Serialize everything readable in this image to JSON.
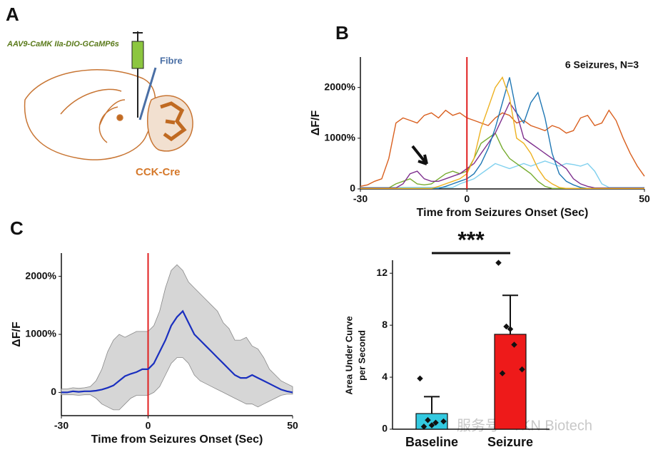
{
  "panels": {
    "a": "A",
    "b": "B",
    "c": "C"
  },
  "diagram": {
    "virus": "AAV9-CaMK IIa-DIO-GCaMP6s",
    "fibre": "Fibre",
    "mouse": "CCK-Cre"
  },
  "watermark": "服务号 · TKN Biotech",
  "chart_data": [
    {
      "type": "line",
      "ylabel": "ΔF/F",
      "xlabel": "Time from Seizures Onset (Sec)",
      "annotation": "6 Seizures, N=3",
      "xlim": [
        -30,
        50
      ],
      "xticks": [
        -30,
        0,
        50
      ],
      "ylim": [
        0,
        2600
      ],
      "yticks": [
        {
          "value": 0,
          "label": "0"
        },
        {
          "value": 1000,
          "label": "1000%"
        },
        {
          "value": 2000,
          "label": "2000%"
        }
      ],
      "onset": {
        "x": 0,
        "color": "#e02020"
      },
      "x": [
        -30,
        -28,
        -26,
        -24,
        -22,
        -20,
        -18,
        -16,
        -14,
        -12,
        -10,
        -8,
        -6,
        -4,
        -2,
        0,
        2,
        4,
        6,
        8,
        10,
        12,
        14,
        16,
        18,
        20,
        22,
        24,
        26,
        28,
        30,
        32,
        34,
        36,
        38,
        40,
        42,
        44,
        46,
        48,
        50
      ],
      "series": [
        {
          "color": "#d95f1e",
          "values": [
            50,
            80,
            150,
            200,
            600,
            1300,
            1400,
            1350,
            1300,
            1450,
            1500,
            1400,
            1550,
            1450,
            1500,
            1400,
            1350,
            1300,
            1250,
            1400,
            1500,
            1450,
            1300,
            1350,
            1250,
            1200,
            1150,
            1250,
            1200,
            1100,
            1150,
            1400,
            1450,
            1250,
            1300,
            1550,
            1350,
            1000,
            700,
            450,
            250
          ]
        },
        {
          "color": "#7fd0ee",
          "values": [
            30,
            30,
            30,
            30,
            30,
            30,
            30,
            30,
            30,
            30,
            30,
            30,
            30,
            30,
            100,
            150,
            200,
            300,
            400,
            500,
            450,
            400,
            450,
            500,
            450,
            500,
            550,
            500,
            450,
            500,
            480,
            450,
            500,
            350,
            100,
            30,
            30,
            30,
            30,
            30,
            30
          ]
        },
        {
          "color": "#77ac30",
          "values": [
            20,
            20,
            20,
            20,
            20,
            100,
            150,
            200,
            100,
            80,
            100,
            200,
            300,
            350,
            300,
            350,
            600,
            900,
            1000,
            1100,
            800,
            600,
            500,
            400,
            300,
            150,
            50,
            10,
            10,
            10,
            10,
            10,
            10,
            10,
            10,
            10,
            10,
            10,
            10,
            10,
            10
          ]
        },
        {
          "color": "#7e2f8e",
          "values": [
            20,
            20,
            20,
            20,
            20,
            20,
            100,
            300,
            350,
            200,
            150,
            150,
            200,
            250,
            300,
            400,
            500,
            700,
            900,
            1100,
            1400,
            1700,
            1500,
            1000,
            900,
            800,
            700,
            600,
            500,
            400,
            200,
            100,
            50,
            20,
            20,
            20,
            20,
            20,
            20,
            20,
            20
          ]
        },
        {
          "color": "#1f77b4",
          "values": [
            10,
            10,
            10,
            10,
            10,
            10,
            10,
            10,
            10,
            10,
            10,
            10,
            50,
            100,
            150,
            200,
            300,
            500,
            800,
            1200,
            1700,
            2200,
            1500,
            1300,
            1700,
            1900,
            1400,
            700,
            300,
            150,
            80,
            30,
            10,
            10,
            10,
            10,
            10,
            10,
            10,
            10,
            10
          ]
        },
        {
          "color": "#edb120",
          "values": [
            10,
            10,
            10,
            10,
            10,
            10,
            10,
            10,
            10,
            10,
            10,
            50,
            100,
            150,
            200,
            300,
            600,
            1200,
            1600,
            2000,
            2200,
            1800,
            1000,
            900,
            700,
            400,
            200,
            100,
            30,
            10,
            10,
            10,
            10,
            10,
            10,
            10,
            10,
            10,
            10,
            10,
            10
          ]
        }
      ]
    },
    {
      "type": "band",
      "ylabel": "ΔF/F",
      "xlabel": "Time from Seizures Onset (Sec)",
      "xlim": [
        -30,
        50
      ],
      "xticks": [
        -30,
        0,
        50
      ],
      "ylim": [
        -400,
        2400
      ],
      "yticks": [
        {
          "value": 0,
          "label": "0"
        },
        {
          "value": 1000,
          "label": "1000%"
        },
        {
          "value": 2000,
          "label": "2000%"
        }
      ],
      "onset": {
        "x": 0,
        "color": "#e02020"
      },
      "x": [
        -30,
        -28,
        -26,
        -24,
        -22,
        -20,
        -18,
        -16,
        -14,
        -12,
        -10,
        -8,
        -6,
        -4,
        -2,
        0,
        2,
        4,
        6,
        8,
        10,
        12,
        14,
        16,
        18,
        20,
        22,
        24,
        26,
        28,
        30,
        32,
        34,
        36,
        38,
        40,
        42,
        44,
        46,
        48,
        50
      ],
      "color": "#1a2fbf",
      "band_color": "#d6d6d6",
      "values": [
        0,
        0,
        20,
        10,
        20,
        20,
        30,
        50,
        80,
        120,
        200,
        280,
        320,
        350,
        400,
        400,
        500,
        700,
        900,
        1150,
        1300,
        1400,
        1200,
        1000,
        900,
        800,
        700,
        600,
        500,
        400,
        300,
        250,
        250,
        300,
        250,
        200,
        150,
        100,
        50,
        20,
        0
      ],
      "upper": [
        60,
        60,
        80,
        70,
        80,
        100,
        200,
        400,
        700,
        900,
        1000,
        950,
        1000,
        1050,
        1050,
        1050,
        1150,
        1400,
        1800,
        2100,
        2200,
        2100,
        1900,
        1800,
        1700,
        1600,
        1500,
        1400,
        1200,
        1100,
        900,
        900,
        950,
        800,
        750,
        600,
        400,
        300,
        200,
        150,
        100
      ],
      "lower": [
        -40,
        -40,
        -40,
        -50,
        -40,
        -40,
        -100,
        -200,
        -250,
        -300,
        -300,
        -200,
        -100,
        -50,
        -50,
        -50,
        0,
        100,
        300,
        500,
        600,
        600,
        500,
        300,
        200,
        150,
        100,
        50,
        0,
        -50,
        -100,
        -150,
        -200,
        -200,
        -250,
        -200,
        -150,
        -100,
        -50,
        -30,
        -30
      ]
    },
    {
      "type": "bar",
      "ylabel": [
        "Area Under Curve",
        "per Second"
      ],
      "annotation": "***",
      "categories": [
        "Baseline",
        "Seizure"
      ],
      "values": [
        1.2,
        7.3
      ],
      "errors": [
        1.3,
        3.0
      ],
      "colors": [
        "#33c9e0",
        "#ee1a1a"
      ],
      "points": [
        [
          3.9,
          0.7,
          0.5,
          0.6,
          0.2,
          0.3
        ],
        [
          12.8,
          7.9,
          6.5,
          4.6,
          4.3,
          7.7
        ]
      ],
      "ylim": [
        0,
        13
      ],
      "yticks": [
        0,
        4,
        8,
        12
      ]
    }
  ]
}
